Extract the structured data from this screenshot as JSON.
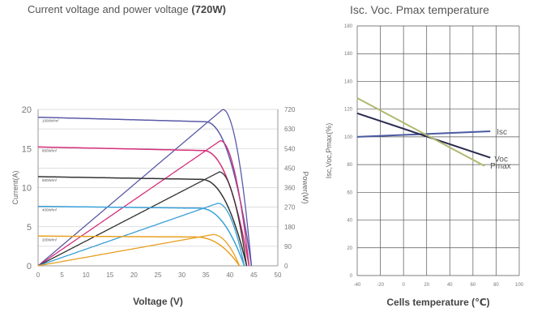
{
  "chart_data": [
    {
      "type": "line",
      "title_prefix": "Current voltage and power voltage",
      "title_bold": "(720W)",
      "xlabel": "Voltage (V)",
      "ylabel": "Current(A)",
      "y2label": "Power(W)",
      "xlim": [
        0,
        50
      ],
      "ylim": [
        0,
        20
      ],
      "y2lim": [
        0,
        720
      ],
      "x_ticks": [
        0,
        5,
        10,
        15,
        20,
        25,
        30,
        35,
        40,
        45,
        50
      ],
      "y_ticks": [
        0,
        5,
        10,
        15,
        20
      ],
      "y2_ticks": [
        0,
        90,
        180,
        270,
        360,
        450,
        540,
        630,
        720
      ],
      "grid": "horizontal",
      "irradiance_series": [
        {
          "name": "1000W/m²",
          "color": "#5a5aa8",
          "isc": 19.0,
          "voc": 44.5,
          "pmax": 720,
          "vmp": 38.5
        },
        {
          "name": "800W/m²",
          "color": "#d4307a",
          "isc": 15.2,
          "voc": 44.0,
          "pmax": 576,
          "vmp": 38.0
        },
        {
          "name": "600W/m²",
          "color": "#333333",
          "isc": 11.4,
          "voc": 43.5,
          "pmax": 432,
          "vmp": 37.8
        },
        {
          "name": "400W/m²",
          "color": "#3aa0d8",
          "isc": 7.6,
          "voc": 43.0,
          "pmax": 288,
          "vmp": 37.5
        },
        {
          "name": "200W/m²",
          "color": "#e8a020",
          "isc": 3.8,
          "voc": 42.0,
          "pmax": 144,
          "vmp": 36.5
        }
      ]
    },
    {
      "type": "line",
      "title": "Isc. Voc. Pmax temperature",
      "xlabel": "Cells temperature (℃)",
      "ylabel": "Isc,Voc,Pmax(%)",
      "xlim": [
        -40,
        100
      ],
      "ylim": [
        0,
        180
      ],
      "x_ticks": [
        -40,
        -20,
        0,
        20,
        40,
        60,
        80,
        100
      ],
      "y_ticks": [
        0,
        20,
        40,
        60,
        80,
        100,
        120,
        140,
        160,
        180
      ],
      "grid": "both",
      "series": [
        {
          "name": "Isc",
          "color": "#4a5aa0",
          "x": [
            -40,
            75
          ],
          "y": [
            100,
            104
          ]
        },
        {
          "name": "Voc",
          "color": "#2a2a50",
          "x": [
            -40,
            75
          ],
          "y": [
            117,
            85
          ]
        },
        {
          "name": "Pmax",
          "color": "#b0b870",
          "x": [
            -40,
            70
          ],
          "y": [
            128,
            79
          ]
        }
      ]
    }
  ]
}
